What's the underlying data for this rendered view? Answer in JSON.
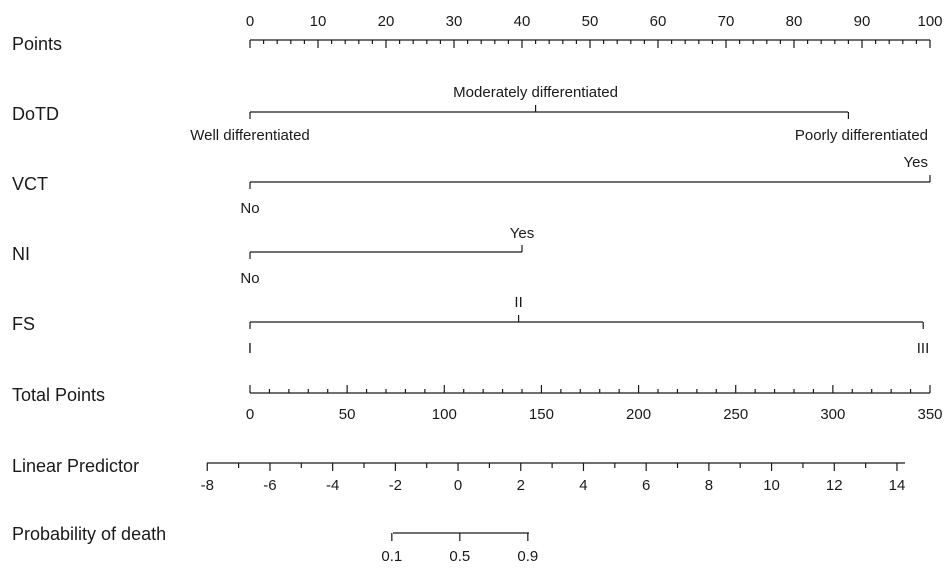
{
  "chart_data": {
    "type": "nomogram",
    "scales": [
      {
        "key": "points",
        "label": "Points",
        "range": [
          0,
          100
        ],
        "major_ticks": [
          0,
          10,
          20,
          30,
          40,
          50,
          60,
          70,
          80,
          90,
          100
        ],
        "minor_step": 2,
        "labels_position": "above"
      },
      {
        "key": "dotd",
        "label": "DoTD",
        "levels": [
          {
            "name": "Well differentiated",
            "points": 0
          },
          {
            "name": "Moderately differentiated",
            "points": 42
          },
          {
            "name": "Poorly differentiated",
            "points": 88
          }
        ]
      },
      {
        "key": "vct",
        "label": "VCT",
        "levels": [
          {
            "name": "No",
            "points": 0
          },
          {
            "name": "Yes",
            "points": 100
          }
        ]
      },
      {
        "key": "ni",
        "label": "NI",
        "levels": [
          {
            "name": "No",
            "points": 0
          },
          {
            "name": "Yes",
            "points": 40
          }
        ]
      },
      {
        "key": "fs",
        "label": "FS",
        "levels": [
          {
            "name": "I",
            "points": 0
          },
          {
            "name": "II",
            "points": 39.5
          },
          {
            "name": "III",
            "points": 99
          }
        ]
      },
      {
        "key": "total",
        "label": "Total Points",
        "range": [
          0,
          350
        ],
        "major_ticks": [
          0,
          50,
          100,
          150,
          200,
          250,
          300,
          350
        ],
        "minor_step": 10,
        "labels_position": "below"
      },
      {
        "key": "lp",
        "label": "Linear Predictor",
        "total_points_range": [
          -22,
          333
        ],
        "major_ticks": [
          -8,
          -6,
          -4,
          -2,
          0,
          2,
          4,
          6,
          8,
          10,
          12,
          14
        ],
        "minor_step": 1,
        "labels_position": "below"
      },
      {
        "key": "prob",
        "label": "Probability of death",
        "total_points_range": [
          73,
          143
        ],
        "major_ticks": [
          0.1,
          0.5,
          0.9
        ],
        "tick_total_points": [
          73,
          108,
          143
        ],
        "labels_position": "below"
      }
    ]
  }
}
